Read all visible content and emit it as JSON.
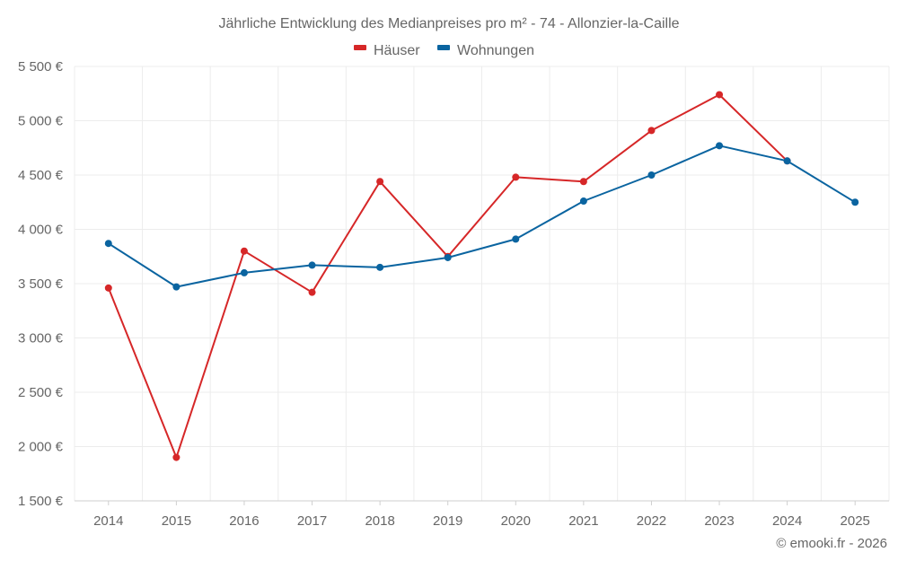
{
  "chart_data": {
    "type": "line",
    "title": "Jährliche Entwicklung des Medianpreises pro m² - 74 - Allonzier-la-Caille",
    "categories": [
      "2014",
      "2015",
      "2016",
      "2017",
      "2018",
      "2019",
      "2020",
      "2021",
      "2022",
      "2023",
      "2024",
      "2025"
    ],
    "series": [
      {
        "name": "Häuser",
        "color": "#d62728",
        "values": [
          3460,
          1900,
          3800,
          3420,
          4440,
          3750,
          4480,
          4440,
          4910,
          5240,
          4630,
          null
        ]
      },
      {
        "name": "Wohnungen",
        "color": "#0a64a0",
        "values": [
          3870,
          3470,
          3600,
          3670,
          3650,
          3740,
          3910,
          4260,
          4500,
          4770,
          4630,
          4250
        ]
      }
    ],
    "ylim": [
      1500,
      5500
    ],
    "yticks": [
      1500,
      2000,
      2500,
      3000,
      3500,
      4000,
      4500,
      5000,
      5500
    ],
    "ytick_labels": [
      "1 500 €",
      "2 000 €",
      "2 500 €",
      "3 000 €",
      "3 500 €",
      "4 000 €",
      "4 500 €",
      "5 000 €",
      "5 500 €"
    ],
    "xlabel": "",
    "ylabel": "",
    "grid": true,
    "legend_position": "top-center"
  },
  "credit": "© emooki.fr - 2026"
}
